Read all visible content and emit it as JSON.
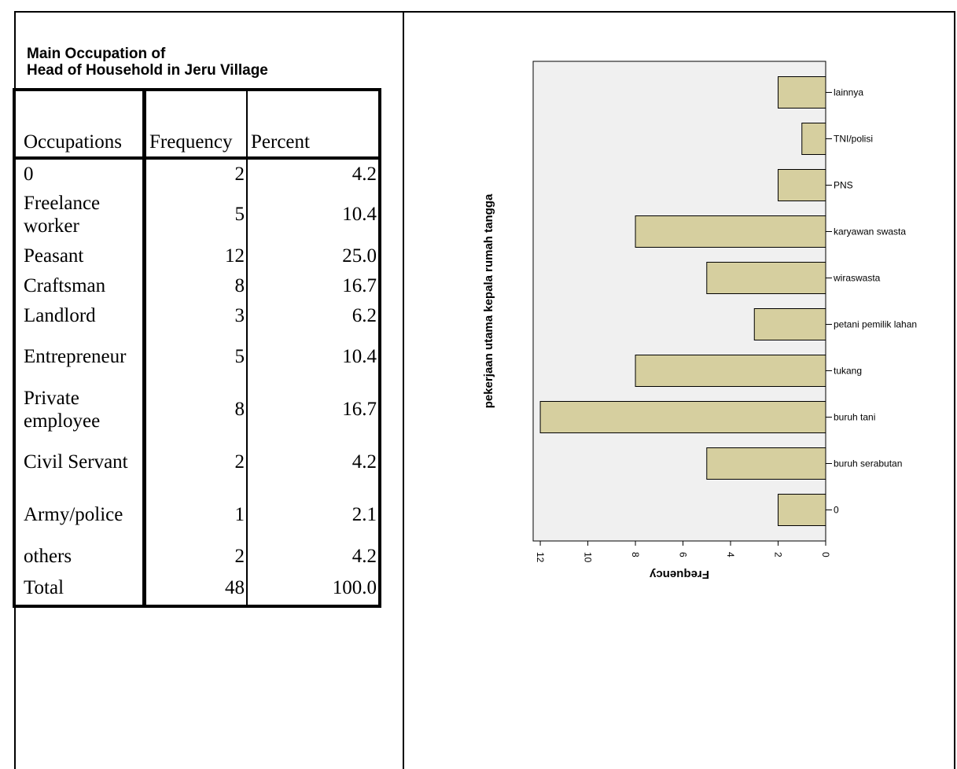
{
  "table": {
    "title_line1": "Main Occupation of",
    "title_line2": "Head of Household in Jeru Village",
    "headers": [
      "Occupations",
      "Frequency",
      "Percent"
    ],
    "rows": [
      {
        "occupation": "0",
        "frequency": "2",
        "percent": "4.2"
      },
      {
        "occupation": "Freelance worker",
        "frequency": "5",
        "percent": "10.4"
      },
      {
        "occupation": "Peasant",
        "frequency": "12",
        "percent": "25.0"
      },
      {
        "occupation": "Craftsman",
        "frequency": "8",
        "percent": "16.7"
      },
      {
        "occupation": "Landlord",
        "frequency": "3",
        "percent": "6.2"
      },
      {
        "occupation": "Entrepreneur",
        "frequency": "5",
        "percent": "10.4"
      },
      {
        "occupation": "Private employee",
        "frequency": "8",
        "percent": "16.7"
      },
      {
        "occupation": "Civil Servant",
        "frequency": "2",
        "percent": "4.2"
      },
      {
        "occupation": "Army/police",
        "frequency": "1",
        "percent": "2.1"
      },
      {
        "occupation": "others",
        "frequency": "2",
        "percent": "4.2"
      },
      {
        "occupation": "Total",
        "frequency": "48",
        "percent": "100.0"
      }
    ]
  },
  "chart_data": {
    "type": "bar",
    "orientation": "horizontal",
    "categories": [
      "lainnya",
      "TNI/polisi",
      "PNS",
      "karyawan swasta",
      "wiraswasta",
      "petani pemilik lahan",
      "tukang",
      "buruh tani",
      "buruh serabutan",
      "0"
    ],
    "values": [
      2,
      1,
      2,
      8,
      5,
      3,
      8,
      12,
      5,
      2
    ],
    "xlabel": "Frequency",
    "ylabel": "pekerjaan utama kepala rumah tangga",
    "xlim": [
      0,
      12.3
    ],
    "x_ticks": [
      12,
      10,
      8,
      6,
      4,
      2,
      0
    ],
    "x_axis_reversed": true,
    "grid": false,
    "colors": {
      "bar_fill": "#d6cf9f",
      "plot_bg": "#f0f0f0",
      "bar_stroke": "#000000"
    }
  }
}
